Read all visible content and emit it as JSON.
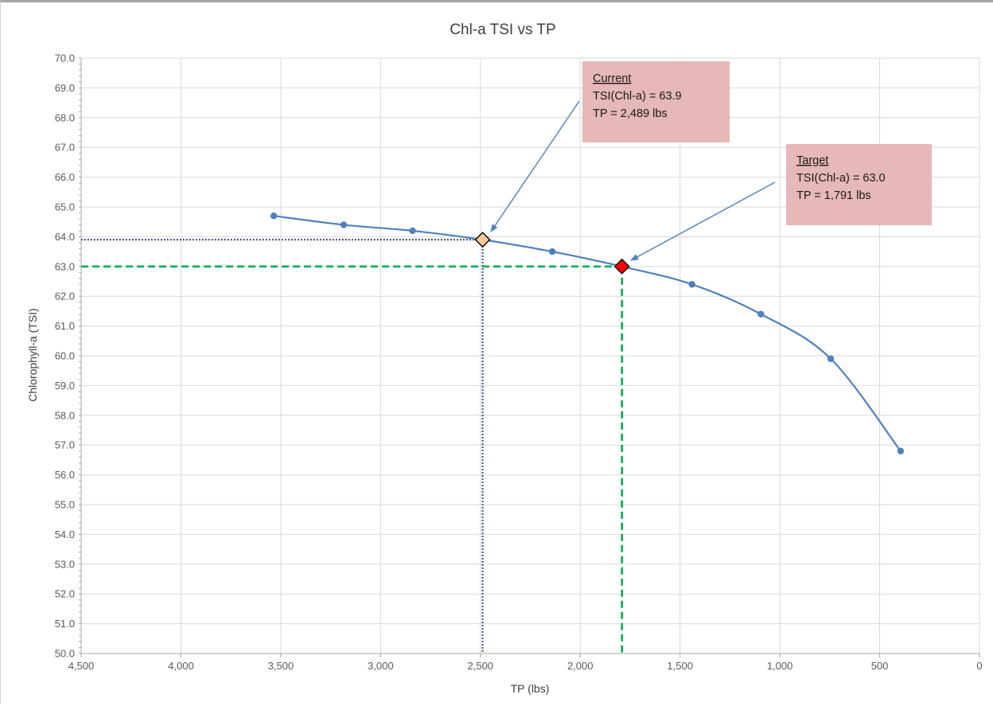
{
  "chart_data": {
    "type": "scatter",
    "title": "Chl-a TSI vs TP",
    "xlabel": "TP (lbs)",
    "ylabel": "Chlorophyll-a (TSI)",
    "x_reversed": true,
    "xlim": [
      0,
      4500
    ],
    "ylim": [
      50.0,
      70.0
    ],
    "x_ticks": [
      4500,
      4000,
      3500,
      3000,
      2500,
      2000,
      1500,
      1000,
      500,
      0
    ],
    "x_tick_labels": [
      "4,500",
      "4,000",
      "3,500",
      "3,000",
      "2,500",
      "2,000",
      "1,500",
      "1,000",
      "500",
      "0"
    ],
    "y_ticks": [
      50,
      51,
      52,
      53,
      54,
      55,
      56,
      57,
      58,
      59,
      60,
      61,
      62,
      63,
      64,
      65,
      66,
      67,
      68,
      69,
      70
    ],
    "y_tick_labels": [
      "50.0",
      "51.0",
      "52.0",
      "53.0",
      "54.0",
      "55.0",
      "56.0",
      "57.0",
      "58.0",
      "59.0",
      "60.0",
      "61.0",
      "62.0",
      "63.0",
      "64.0",
      "65.0",
      "66.0",
      "67.0",
      "68.0",
      "69.0",
      "70.0"
    ],
    "grid": true,
    "series": [
      {
        "color": "#4f81bd",
        "style": "smooth-line-with-markers",
        "x": [
          3535,
          3185,
          2840,
          2489,
          2140,
          1791,
          1440,
          1095,
          745,
          395
        ],
        "y": [
          64.7,
          64.4,
          64.2,
          63.9,
          63.5,
          63.0,
          62.4,
          61.4,
          59.9,
          56.8
        ]
      }
    ],
    "current": {
      "x": 2489,
      "y": 63.9,
      "marker_color": "#f9c99a",
      "line_color": "#1f3864",
      "label_title": "Current",
      "label_line1": "TSI(Chl-a) = 63.9",
      "label_line2": "TP = 2,489 lbs"
    },
    "target": {
      "x": 1791,
      "y": 63.0,
      "marker_color": "#ff0000",
      "line_color": "#00b050",
      "label_title": "Target",
      "label_line1": "TSI(Chl-a) = 63.0",
      "label_line2": "TP = 1,791 lbs"
    },
    "annotation_box_color": "#e6b8b7",
    "arrow_color": "#4f81bd"
  }
}
